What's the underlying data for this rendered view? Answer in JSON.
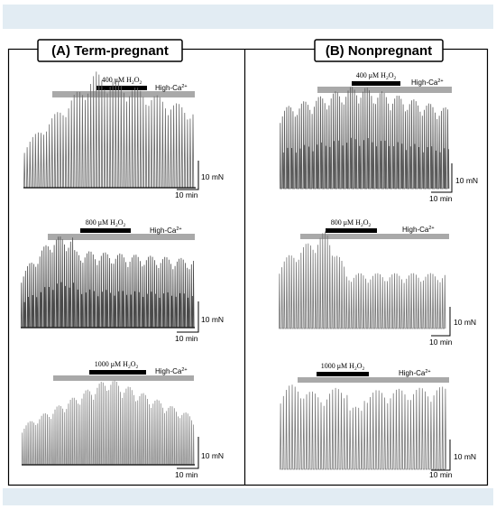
{
  "panels": [
    {
      "title": "(A) Term-pregnant",
      "traces": [
        {
          "dose_label": "400 μM H",
          "dose_sub": "2",
          "dose_o": "O",
          "dose_sub2": "2",
          "solution": "High-Ca",
          "solution_sup": "2+",
          "scale_force": "10 mN",
          "scale_time": "10 min"
        },
        {
          "dose_label": "800 μM H",
          "dose_sub": "2",
          "dose_o": "O",
          "dose_sub2": "2",
          "solution": "High-Ca",
          "solution_sup": "2+",
          "scale_force": "10 mN",
          "scale_time": "10 min"
        },
        {
          "dose_label": "1000 μM H",
          "dose_sub": "2",
          "dose_o": "O",
          "dose_sub2": "2",
          "solution": "High-Ca",
          "solution_sup": "2+",
          "scale_force": "10 mN",
          "scale_time": "10 min"
        }
      ]
    },
    {
      "title": "(B) Nonpregnant",
      "traces": [
        {
          "dose_label": "400 μM H",
          "dose_sub": "2",
          "dose_o": "O",
          "dose_sub2": "2",
          "solution": "High-Ca",
          "solution_sup": "2+",
          "scale_force": "10 mN",
          "scale_time": "10 min"
        },
        {
          "dose_label": "800 μM H",
          "dose_sub": "2",
          "dose_o": "O",
          "dose_sub2": "2",
          "solution": "High-Ca",
          "solution_sup": "2+",
          "scale_force": "10 mN",
          "scale_time": "10 min"
        },
        {
          "dose_label": "1000 μM H",
          "dose_sub": "2",
          "dose_o": "O",
          "dose_sub2": "2",
          "solution": "High-Ca",
          "solution_sup": "2+",
          "scale_force": "10 mN",
          "scale_time": "10 min"
        }
      ]
    }
  ],
  "colors": {
    "band": "#e2ecf3",
    "solution_bar": "#a9a9a9",
    "treatment_bar": "#000000",
    "trace": "#6a6a6a"
  }
}
